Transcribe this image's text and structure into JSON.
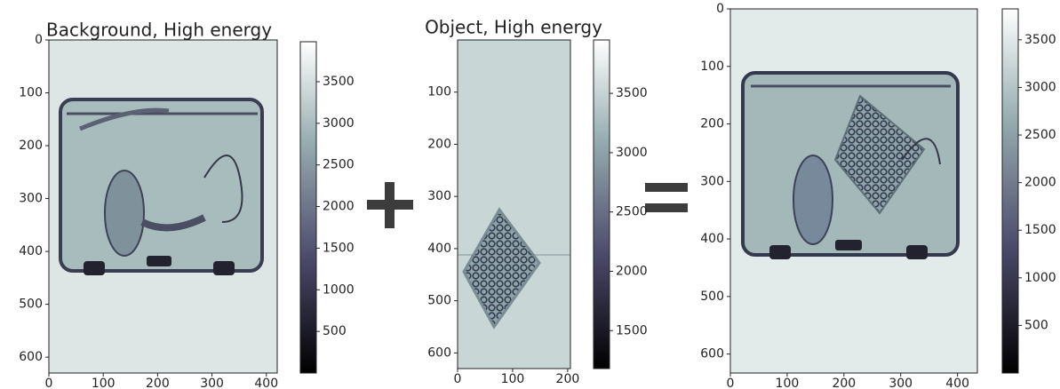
{
  "chart_data": [
    {
      "type": "image",
      "title": "Background, High energy",
      "xlim": [
        0,
        420
      ],
      "ylim": [
        630,
        0
      ],
      "xticks": [
        0,
        100,
        200,
        300,
        400
      ],
      "yticks": [
        0,
        100,
        200,
        300,
        400,
        500,
        600
      ],
      "colorbar": {
        "clim": [
          0,
          3980
        ],
        "ticks": [
          500,
          1000,
          1500,
          2000,
          2500,
          3000,
          3500
        ]
      }
    },
    {
      "type": "image",
      "title": "Object, High energy",
      "xlim": [
        0,
        205
      ],
      "ylim": [
        630,
        0
      ],
      "xticks": [
        0,
        100,
        200
      ],
      "yticks": [
        100,
        200,
        300,
        400,
        500,
        600
      ],
      "colorbar": {
        "clim": [
          1180,
          3950
        ],
        "ticks": [
          1500,
          2000,
          2500,
          3000,
          3500
        ]
      }
    },
    {
      "type": "image",
      "xlim": [
        0,
        435
      ],
      "ylim": [
        633,
        0
      ],
      "xticks": [
        0,
        100,
        200,
        300,
        400
      ],
      "yticks": [
        0,
        100,
        200,
        300,
        400,
        500,
        600
      ],
      "colorbar": {
        "clim": [
          0,
          3825
        ],
        "ticks": [
          500,
          1000,
          1500,
          2000,
          2500,
          3000,
          3500
        ]
      }
    }
  ]
}
